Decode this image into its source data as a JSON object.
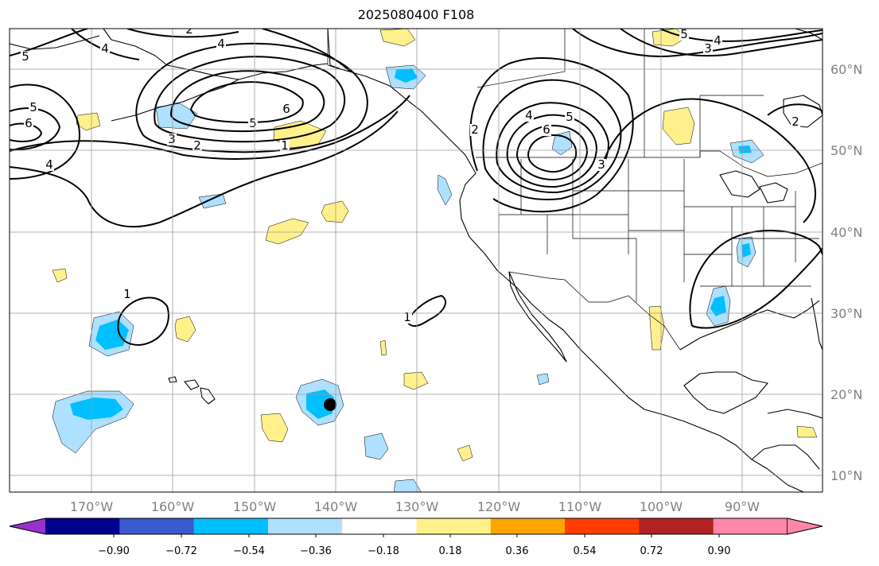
{
  "title": "2025080400 F108",
  "lon_labels": [
    "170°W",
    "160°W",
    "150°W",
    "140°W",
    "130°W",
    "120°W",
    "110°W",
    "100°W",
    "90°W"
  ],
  "lat_labels": [
    "60°N",
    "50°N",
    "40°N",
    "30°N",
    "20°N",
    "10°N"
  ],
  "colorbar": {
    "ticks": [
      "−0.90",
      "−0.72",
      "−0.54",
      "−0.36",
      "−0.18",
      "0.18",
      "0.36",
      "0.54",
      "0.72",
      "0.90"
    ],
    "colors": [
      "#9932cc",
      "#00008b",
      "#3a5bcd",
      "#00bfff",
      "#aee0ff",
      "#ffffff",
      "#fff08c",
      "#ffa500",
      "#ff3c00",
      "#b22222",
      "#ff88aa"
    ]
  },
  "contour_labels": [
    "1",
    "1",
    "1",
    "2",
    "2",
    "2",
    "2",
    "3",
    "3",
    "3",
    "4",
    "4",
    "4",
    "4",
    "4",
    "5",
    "5",
    "5",
    "5",
    "5",
    "6",
    "6",
    "6"
  ],
  "shading_colors": {
    "light_blue": "#aee0ff",
    "blue": "#00bfff",
    "yellow": "#fff08c"
  },
  "marker": {
    "type": "storm-position-dot",
    "color": "#000000"
  }
}
